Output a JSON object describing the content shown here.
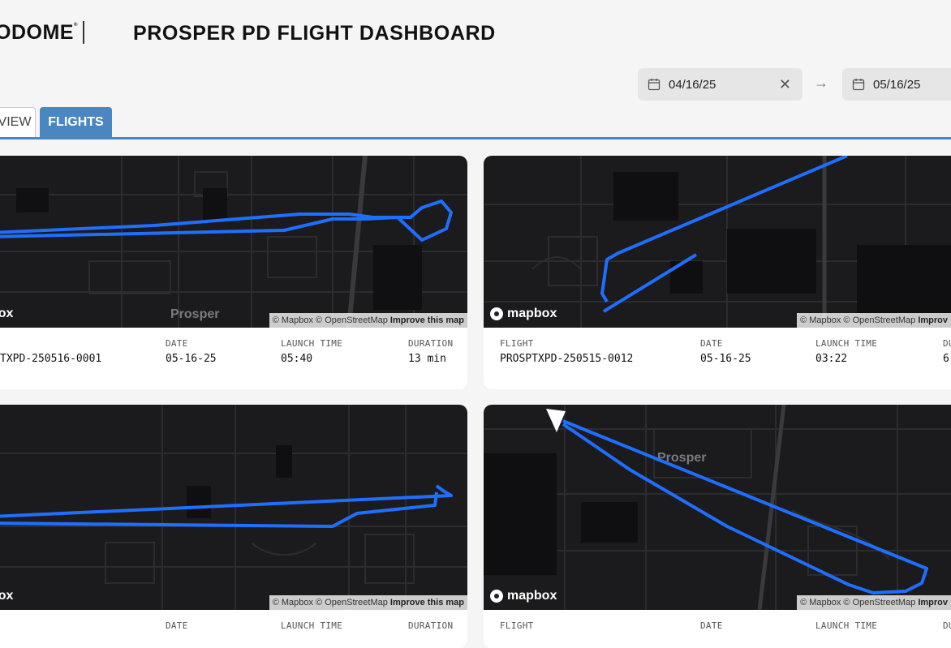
{
  "brand": {
    "logo": "ODOME",
    "mark": "®"
  },
  "header": {
    "title": "PROSPER PD FLIGHT DASHBOARD"
  },
  "date_range": {
    "start": "04/16/25",
    "end": "05/16/25",
    "separator": "→",
    "clear": "✕"
  },
  "tabs": [
    {
      "label": "VIEW",
      "active": false
    },
    {
      "label": "FLIGHTS",
      "active": true
    }
  ],
  "labels": {
    "flight": "FLIGHT",
    "date": "DATE",
    "launch_time": "LAUNCH TIME",
    "duration": "DURATION",
    "duration_short": "DU"
  },
  "map": {
    "attribution_short": "© Mapbox © OpenStreetMap",
    "improve": "Improve this map",
    "improve_truncated": "Improv",
    "logo_full": "mapbox",
    "logo_clipped": "box",
    "place_label": "Prosper"
  },
  "flights": [
    {
      "flight": "TXPD-250516-0001",
      "date": "05-16-25",
      "launch_time": "05:40",
      "duration": "13 min"
    },
    {
      "flight": "PROSPTXPD-250515-0012",
      "date": "05-16-25",
      "launch_time": "03:22",
      "duration": "6"
    },
    {
      "flight": "",
      "date": "",
      "launch_time": "",
      "duration": ""
    },
    {
      "flight": "",
      "date": "",
      "launch_time": "",
      "duration": ""
    }
  ],
  "colors": {
    "accent": "#4a86bf",
    "map_bg": "#1b1b1d",
    "flight_path": "#1f6fff"
  }
}
